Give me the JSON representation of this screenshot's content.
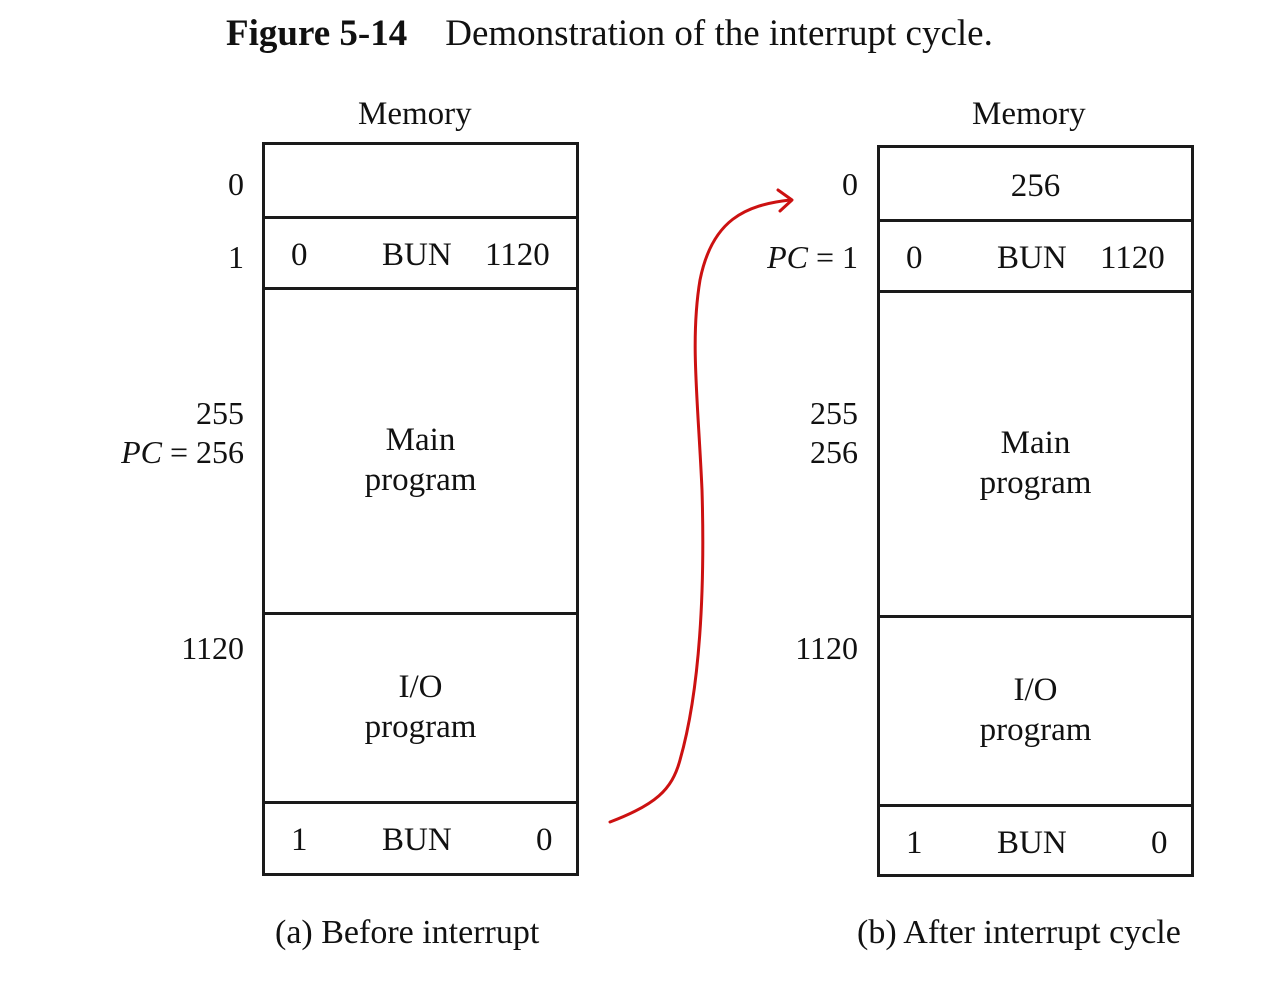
{
  "title": {
    "number": "Figure 5-14",
    "caption": "Demonstration of the interrupt cycle."
  },
  "left": {
    "memory_label": "Memory",
    "addresses": {
      "a0": "0",
      "a1": "1",
      "a255": "255",
      "pc_label": "PC",
      "a256": " = 256",
      "a1120": "1120"
    },
    "cell1": {
      "i": "0",
      "op": "BUN",
      "addr": "1120"
    },
    "main_program": [
      "Main",
      "program"
    ],
    "io_program": [
      "I/O",
      "program"
    ],
    "last_cell": {
      "i": "1",
      "op": "BUN",
      "addr": "0"
    },
    "caption": "(a) Before interrupt"
  },
  "right": {
    "memory_label": "Memory",
    "addresses": {
      "a0": "0",
      "pc_label": "PC",
      "a1": " = 1",
      "a255": "255",
      "a256": "256",
      "a1120": "1120"
    },
    "cell0_value": "256",
    "cell1": {
      "i": "0",
      "op": "BUN",
      "addr": "1120"
    },
    "main_program": [
      "Main",
      "program"
    ],
    "io_program": [
      "I/O",
      "program"
    ],
    "last_cell": {
      "i": "1",
      "op": "BUN",
      "addr": "0"
    },
    "caption": "(b) After interrupt cycle"
  },
  "colors": {
    "arrow": "#cc1111",
    "ink": "#111111"
  }
}
